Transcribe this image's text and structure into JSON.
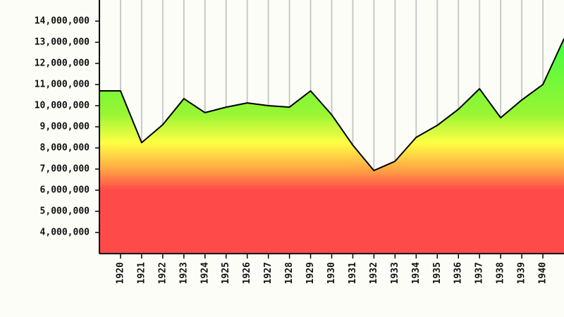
{
  "chart_data": {
    "type": "area",
    "x": [
      1919,
      1920,
      1921,
      1922,
      1923,
      1924,
      1925,
      1926,
      1927,
      1928,
      1929,
      1930,
      1931,
      1932,
      1933,
      1934,
      1935,
      1936,
      1937,
      1938,
      1939,
      1940,
      1941
    ],
    "values": [
      10700000,
      10700000,
      8250000,
      9100000,
      10330000,
      9670000,
      9930000,
      10130000,
      10000000,
      9930000,
      10700000,
      9570000,
      8130000,
      6930000,
      7370000,
      8500000,
      9070000,
      9830000,
      10800000,
      9430000,
      10270000,
      11000000,
      13170000
    ],
    "color": "#000000",
    "xlim": [
      1919,
      1941
    ],
    "xticks": [
      1920,
      1921,
      1922,
      1923,
      1924,
      1925,
      1926,
      1927,
      1928,
      1929,
      1930,
      1931,
      1932,
      1933,
      1934,
      1935,
      1936,
      1937,
      1938,
      1939,
      1940
    ],
    "ylim": [
      3000000,
      15000000
    ],
    "yticks": [
      {
        "value": 4000000,
        "label": "4,000,000"
      },
      {
        "value": 5000000,
        "label": "5,000,000"
      },
      {
        "value": 6000000,
        "label": "6,000,000"
      },
      {
        "value": 7000000,
        "label": "7,000,000"
      },
      {
        "value": 8000000,
        "label": "8,000,000"
      },
      {
        "value": 9000000,
        "label": "9,000,000"
      },
      {
        "value": 10000000,
        "label": "10,000,000"
      },
      {
        "value": 11000000,
        "label": "11,000,000"
      },
      {
        "value": 12000000,
        "label": "12,000,000"
      },
      {
        "value": 13000000,
        "label": "13,000,000"
      },
      {
        "value": 14000000,
        "label": "14,000,000"
      }
    ],
    "grid": true
  }
}
